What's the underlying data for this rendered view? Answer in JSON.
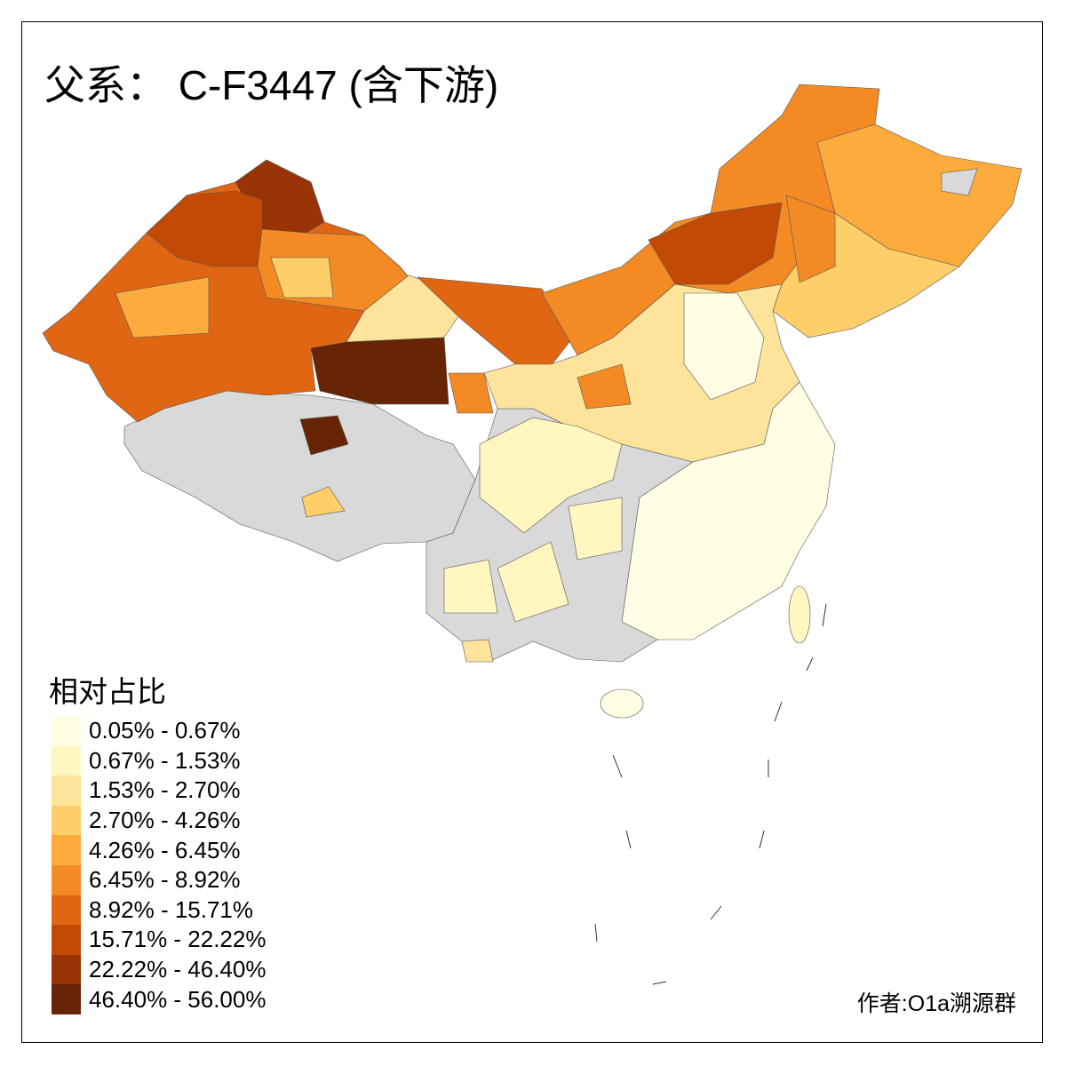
{
  "title": "父系： C-F3447 (含下游)",
  "legend": {
    "title": "相对占比",
    "classes": [
      {
        "label": "0.05% - 0.67%",
        "color": "#fffde4"
      },
      {
        "label": "0.67% - 1.53%",
        "color": "#fff6c0"
      },
      {
        "label": "1.53% - 2.70%",
        "color": "#fee49a"
      },
      {
        "label": "2.70% - 4.26%",
        "color": "#fecf69"
      },
      {
        "label": "4.26% - 6.45%",
        "color": "#fdab3d"
      },
      {
        "label": "6.45% - 8.92%",
        "color": "#f38a24"
      },
      {
        "label": "8.92% - 15.71%",
        "color": "#e06613"
      },
      {
        "label": "15.71% - 22.22%",
        "color": "#c24a05"
      },
      {
        "label": "22.22% - 46.40%",
        "color": "#973304"
      },
      {
        "label": "46.40% - 56.00%",
        "color": "#682506"
      }
    ],
    "no_data_color": "#d9d9d9"
  },
  "author": "作者:O1a溯源群"
}
